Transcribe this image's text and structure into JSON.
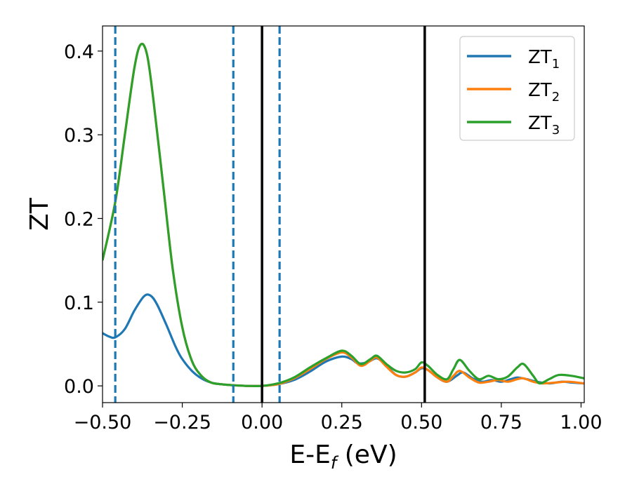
{
  "chart_data": {
    "type": "line",
    "xlabel": {
      "main": "E-E",
      "sub": "f",
      "unit": " (eV)"
    },
    "ylabel": "ZT",
    "xlim": [
      -0.5,
      1.01
    ],
    "ylim": [
      -0.02,
      0.43
    ],
    "x_ticks": [
      -0.5,
      -0.25,
      0.0,
      0.25,
      0.5,
      0.75,
      1.0
    ],
    "x_tick_labels": [
      "−0.50",
      "−0.25",
      "0.00",
      "0.25",
      "0.50",
      "0.75",
      "1.00"
    ],
    "y_ticks": [
      0.0,
      0.1,
      0.2,
      0.3,
      0.4
    ],
    "y_tick_labels": [
      "0.0",
      "0.1",
      "0.2",
      "0.3",
      "0.4"
    ],
    "grid": false,
    "legend_position": "top-right",
    "vlines_dashed": [
      -0.46,
      -0.09,
      0.055
    ],
    "vlines_solid": [
      0.0,
      0.51
    ],
    "dashed_color": "#1f77b4",
    "solid_color": "#000000",
    "series": [
      {
        "name": "ZT",
        "name_sub": "1",
        "color": "#1f77b4",
        "points": [
          [
            -0.5,
            0.063
          ],
          [
            -0.48,
            0.059
          ],
          [
            -0.46,
            0.058
          ],
          [
            -0.43,
            0.068
          ],
          [
            -0.4,
            0.09
          ],
          [
            -0.37,
            0.107
          ],
          [
            -0.35,
            0.108
          ],
          [
            -0.33,
            0.098
          ],
          [
            -0.3,
            0.073
          ],
          [
            -0.27,
            0.046
          ],
          [
            -0.25,
            0.032
          ],
          [
            -0.22,
            0.018
          ],
          [
            -0.19,
            0.009
          ],
          [
            -0.16,
            0.004
          ],
          [
            -0.13,
            0.002
          ],
          [
            -0.1,
            0.001
          ],
          [
            -0.05,
            0.0
          ],
          [
            0.0,
            0.0
          ],
          [
            0.05,
            0.002
          ],
          [
            0.1,
            0.007
          ],
          [
            0.15,
            0.017
          ],
          [
            0.2,
            0.029
          ],
          [
            0.25,
            0.035
          ],
          [
            0.28,
            0.032
          ],
          [
            0.3,
            0.027
          ],
          [
            0.33,
            0.028
          ],
          [
            0.36,
            0.033
          ],
          [
            0.39,
            0.024
          ],
          [
            0.42,
            0.013
          ],
          [
            0.45,
            0.011
          ],
          [
            0.48,
            0.016
          ],
          [
            0.5,
            0.021
          ],
          [
            0.52,
            0.019
          ],
          [
            0.55,
            0.01
          ],
          [
            0.58,
            0.005
          ],
          [
            0.61,
            0.012
          ],
          [
            0.63,
            0.016
          ],
          [
            0.66,
            0.009
          ],
          [
            0.69,
            0.005
          ],
          [
            0.72,
            0.007
          ],
          [
            0.75,
            0.005
          ],
          [
            0.78,
            0.008
          ],
          [
            0.8,
            0.01
          ],
          [
            0.83,
            0.008
          ],
          [
            0.86,
            0.005
          ],
          [
            0.9,
            0.003
          ],
          [
            0.94,
            0.005
          ],
          [
            0.97,
            0.004
          ],
          [
            1.01,
            0.003
          ]
        ]
      },
      {
        "name": "ZT",
        "name_sub": "2",
        "color": "#ff7f0e",
        "points": [
          [
            -0.5,
            0.15
          ],
          [
            -0.46,
            0.22
          ],
          [
            -0.43,
            0.3
          ],
          [
            -0.4,
            0.38
          ],
          [
            -0.38,
            0.408
          ],
          [
            -0.36,
            0.395
          ],
          [
            -0.34,
            0.34
          ],
          [
            -0.31,
            0.24
          ],
          [
            -0.28,
            0.14
          ],
          [
            -0.25,
            0.07
          ],
          [
            -0.22,
            0.03
          ],
          [
            -0.19,
            0.012
          ],
          [
            -0.16,
            0.004
          ],
          [
            -0.13,
            0.002
          ],
          [
            -0.1,
            0.001
          ],
          [
            -0.05,
            0.0
          ],
          [
            0.0,
            0.0
          ],
          [
            0.05,
            0.002
          ],
          [
            0.1,
            0.009
          ],
          [
            0.15,
            0.02
          ],
          [
            0.2,
            0.032
          ],
          [
            0.25,
            0.04
          ],
          [
            0.28,
            0.034
          ],
          [
            0.31,
            0.024
          ],
          [
            0.34,
            0.03
          ],
          [
            0.36,
            0.034
          ],
          [
            0.39,
            0.023
          ],
          [
            0.42,
            0.013
          ],
          [
            0.45,
            0.011
          ],
          [
            0.48,
            0.016
          ],
          [
            0.5,
            0.022
          ],
          [
            0.52,
            0.019
          ],
          [
            0.55,
            0.01
          ],
          [
            0.58,
            0.005
          ],
          [
            0.6,
            0.012
          ],
          [
            0.62,
            0.018
          ],
          [
            0.65,
            0.01
          ],
          [
            0.68,
            0.004
          ],
          [
            0.71,
            0.005
          ],
          [
            0.74,
            0.007
          ],
          [
            0.77,
            0.005
          ],
          [
            0.8,
            0.008
          ],
          [
            0.82,
            0.009
          ],
          [
            0.85,
            0.005
          ],
          [
            0.88,
            0.003
          ],
          [
            0.92,
            0.004
          ],
          [
            0.96,
            0.005
          ],
          [
            1.01,
            0.003
          ]
        ]
      },
      {
        "name": "ZT",
        "name_sub": "3",
        "color": "#2ca02c",
        "points": [
          [
            -0.5,
            0.15
          ],
          [
            -0.46,
            0.22
          ],
          [
            -0.43,
            0.3
          ],
          [
            -0.4,
            0.38
          ],
          [
            -0.38,
            0.408
          ],
          [
            -0.36,
            0.395
          ],
          [
            -0.34,
            0.34
          ],
          [
            -0.31,
            0.24
          ],
          [
            -0.28,
            0.14
          ],
          [
            -0.25,
            0.07
          ],
          [
            -0.22,
            0.03
          ],
          [
            -0.19,
            0.012
          ],
          [
            -0.16,
            0.004
          ],
          [
            -0.13,
            0.002
          ],
          [
            -0.1,
            0.001
          ],
          [
            -0.05,
            0.0
          ],
          [
            0.0,
            0.0
          ],
          [
            0.05,
            0.003
          ],
          [
            0.1,
            0.01
          ],
          [
            0.15,
            0.022
          ],
          [
            0.2,
            0.033
          ],
          [
            0.25,
            0.042
          ],
          [
            0.28,
            0.036
          ],
          [
            0.31,
            0.026
          ],
          [
            0.34,
            0.032
          ],
          [
            0.36,
            0.036
          ],
          [
            0.39,
            0.026
          ],
          [
            0.42,
            0.018
          ],
          [
            0.45,
            0.016
          ],
          [
            0.48,
            0.02
          ],
          [
            0.5,
            0.028
          ],
          [
            0.52,
            0.024
          ],
          [
            0.55,
            0.013
          ],
          [
            0.58,
            0.008
          ],
          [
            0.6,
            0.02
          ],
          [
            0.62,
            0.031
          ],
          [
            0.65,
            0.018
          ],
          [
            0.68,
            0.008
          ],
          [
            0.71,
            0.012
          ],
          [
            0.74,
            0.008
          ],
          [
            0.77,
            0.011
          ],
          [
            0.8,
            0.022
          ],
          [
            0.82,
            0.026
          ],
          [
            0.85,
            0.012
          ],
          [
            0.87,
            0.003
          ],
          [
            0.9,
            0.008
          ],
          [
            0.93,
            0.013
          ],
          [
            0.97,
            0.012
          ],
          [
            1.01,
            0.009
          ]
        ]
      }
    ]
  }
}
